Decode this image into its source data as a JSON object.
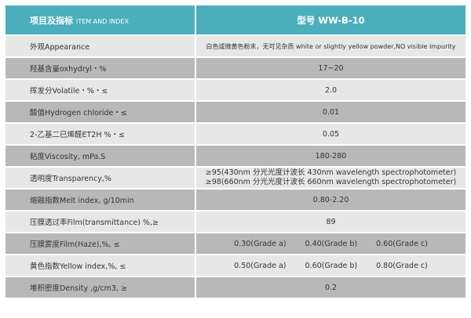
{
  "header": {
    "item_cn": "项目及指标",
    "item_en": "ITEM AND INDEX",
    "model": "型号 WW-B-10"
  },
  "rows": [
    {
      "label": "外观Appearance",
      "value": "白色或微黄色粉末，无可见杂质 white or slightly yellow powder,NO visible impurity"
    },
    {
      "label": "羟基含量oxhydryl・%",
      "value": "17~20"
    },
    {
      "label": "挥发分Volatile・%・≤",
      "value": "2.0"
    },
    {
      "label": "酸值Hydrogen chloride・≤",
      "value": "0.01"
    },
    {
      "label": "2-乙基二已烯醛ET2H %・≤",
      "value": "0.05"
    },
    {
      "label": "粘度Viscosity, mPa.S",
      "value": "180-280"
    },
    {
      "label": "透明度Transparency,%",
      "value": "≥95(430nm 分光光度计波长 430nm wavelength spectrophotometer)",
      "value2": "≥98(660nm 分光光度计波长 660nm wavelength spectrophotometer)"
    },
    {
      "label": "熔融指数Melt index, g/10min",
      "value": "0.80-2.20"
    },
    {
      "label": "压膜透过率Film(transmittance) %,≥",
      "value": "89"
    },
    {
      "label": "压膜雾度Film(Haze),%,  ≤",
      "grades": [
        "0.30(Grade a)",
        "0.40(Grade b)",
        "0.60(Grade c)"
      ]
    },
    {
      "label": "黄色指数Yellow index,%, ≤",
      "grades": [
        "0.50(Grade a)",
        "0.60(Grade b)",
        "0.80(Grade c)"
      ]
    },
    {
      "label": "堆积密度Density ,g/cm3,  ≥",
      "value": "0.2"
    }
  ]
}
